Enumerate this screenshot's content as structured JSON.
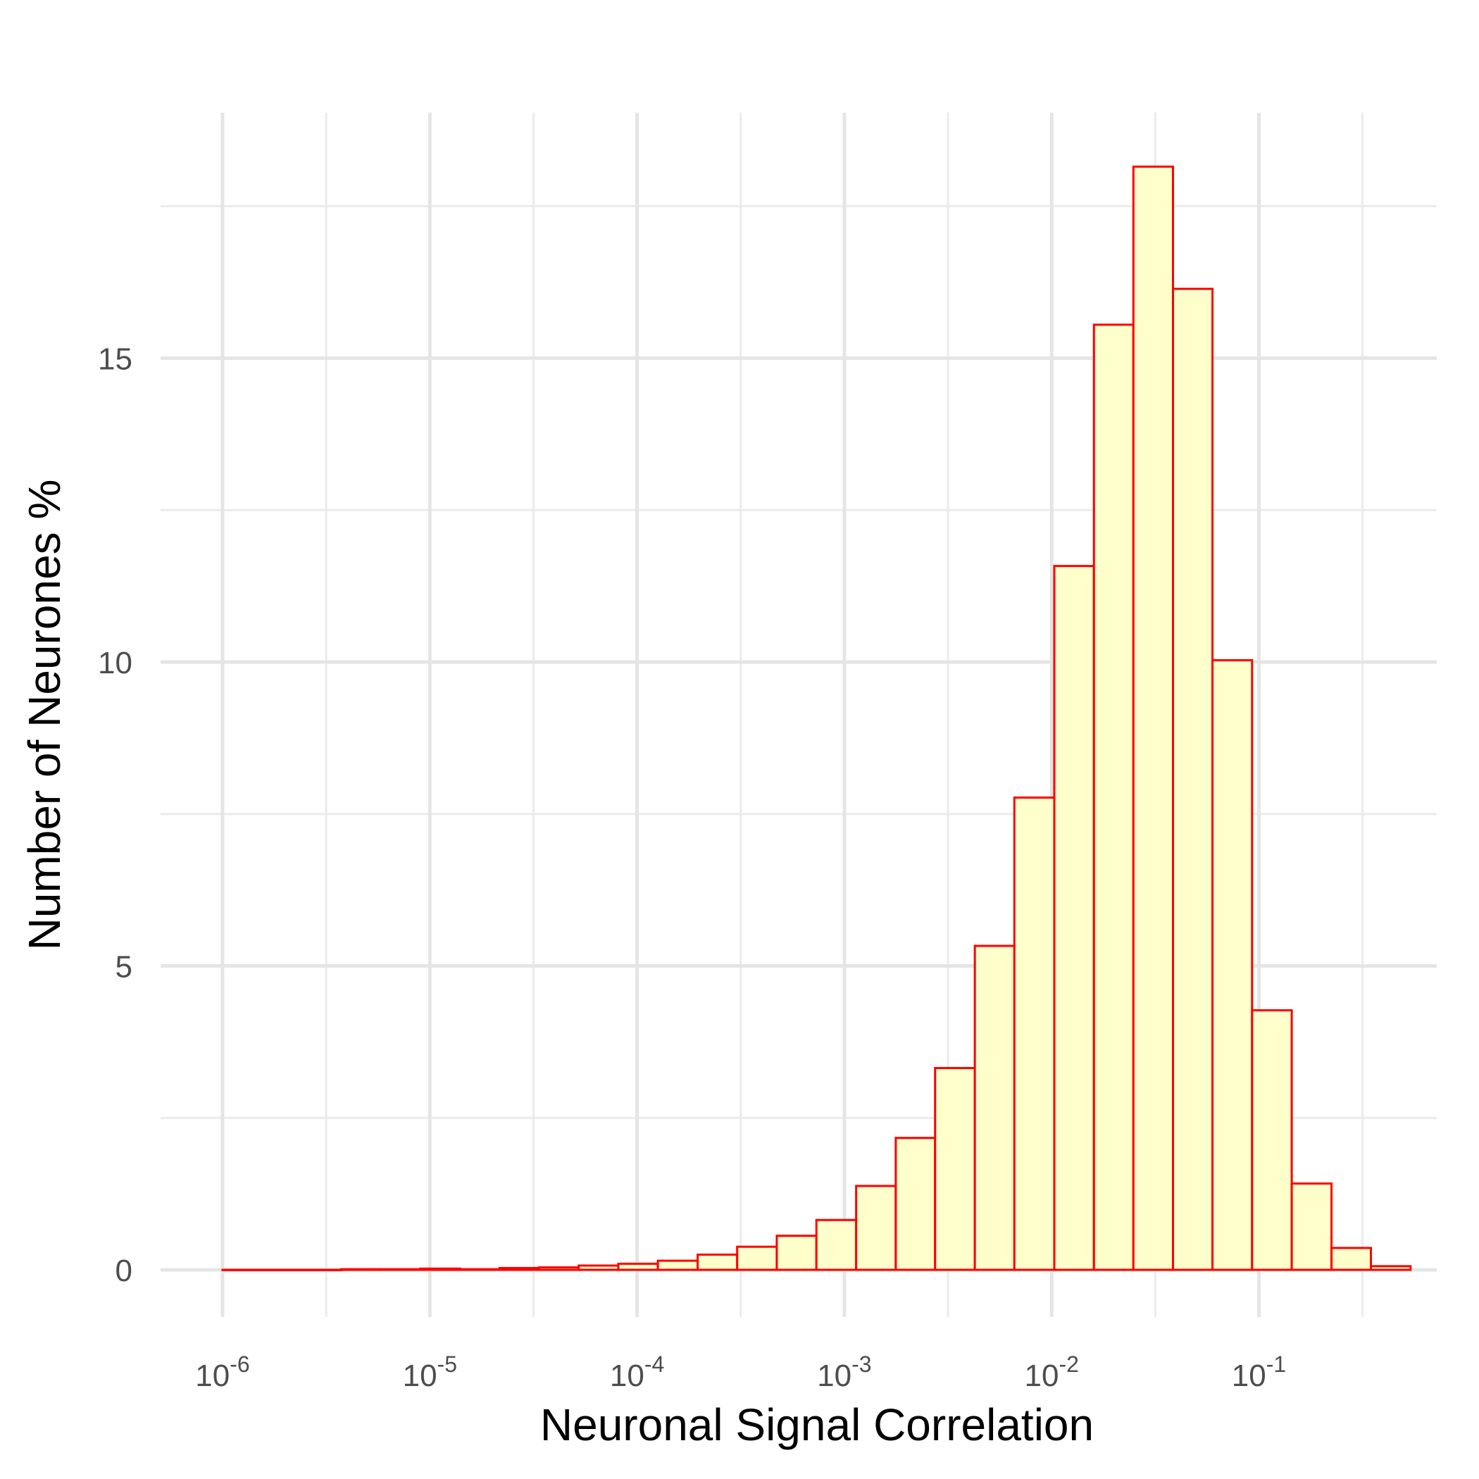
{
  "chart_data": {
    "type": "bar",
    "xlabel": "Neuronal Signal Correlation",
    "ylabel": "Number of Neurones %",
    "x_scale": "log10",
    "xlim": [
      1e-06,
      0.5
    ],
    "ylim": [
      0,
      18.5
    ],
    "x_tick_exponents": [
      "-6",
      "-5",
      "-4",
      "-3",
      "-2",
      "-1"
    ],
    "x_tick_base": "10",
    "y_ticks": [
      0,
      5,
      10,
      15
    ],
    "grid": true,
    "bins": [
      {
        "x0": 1e-06,
        "x1": 1.55e-06,
        "value": 0.0
      },
      {
        "x0": 1.55e-06,
        "x1": 2.41e-06,
        "value": 0.0
      },
      {
        "x0": 2.41e-06,
        "x1": 3.74e-06,
        "value": 0.0
      },
      {
        "x0": 3.74e-06,
        "x1": 5.81e-06,
        "value": 0.01
      },
      {
        "x0": 5.81e-06,
        "x1": 9e-06,
        "value": 0.01
      },
      {
        "x0": 9e-06,
        "x1": 1.4e-05,
        "value": 0.02
      },
      {
        "x0": 1.4e-05,
        "x1": 2.17e-05,
        "value": 0.01
      },
      {
        "x0": 2.17e-05,
        "x1": 3.37e-05,
        "value": 0.03
      },
      {
        "x0": 3.37e-05,
        "x1": 5.23e-05,
        "value": 0.04
      },
      {
        "x0": 5.23e-05,
        "x1": 8.12e-05,
        "value": 0.07
      },
      {
        "x0": 8.12e-05,
        "x1": 0.000126,
        "value": 0.1
      },
      {
        "x0": 0.000126,
        "x1": 0.000196,
        "value": 0.15
      },
      {
        "x0": 0.000196,
        "x1": 0.000304,
        "value": 0.25
      },
      {
        "x0": 0.000304,
        "x1": 0.000472,
        "value": 0.38
      },
      {
        "x0": 0.000472,
        "x1": 0.000733,
        "value": 0.56
      },
      {
        "x0": 0.000733,
        "x1": 0.00114,
        "value": 0.82
      },
      {
        "x0": 0.00114,
        "x1": 0.00177,
        "value": 1.38
      },
      {
        "x0": 0.00177,
        "x1": 0.00274,
        "value": 2.17
      },
      {
        "x0": 0.00274,
        "x1": 0.00426,
        "value": 3.32
      },
      {
        "x0": 0.00426,
        "x1": 0.00661,
        "value": 5.33
      },
      {
        "x0": 0.00661,
        "x1": 0.0103,
        "value": 7.77
      },
      {
        "x0": 0.0103,
        "x1": 0.016,
        "value": 11.58
      },
      {
        "x0": 0.016,
        "x1": 0.0248,
        "value": 15.55
      },
      {
        "x0": 0.0248,
        "x1": 0.0385,
        "value": 18.15
      },
      {
        "x0": 0.0385,
        "x1": 0.0597,
        "value": 16.14
      },
      {
        "x0": 0.0597,
        "x1": 0.0927,
        "value": 10.03
      },
      {
        "x0": 0.0927,
        "x1": 0.144,
        "value": 4.27
      },
      {
        "x0": 0.144,
        "x1": 0.224,
        "value": 1.42
      },
      {
        "x0": 0.224,
        "x1": 0.347,
        "value": 0.36
      },
      {
        "x0": 0.347,
        "x1": 0.539,
        "value": 0.06
      }
    ],
    "colors": {
      "fill": "#ffffcc",
      "stroke": "#ff0000",
      "grid": "#e5e5e5"
    }
  }
}
